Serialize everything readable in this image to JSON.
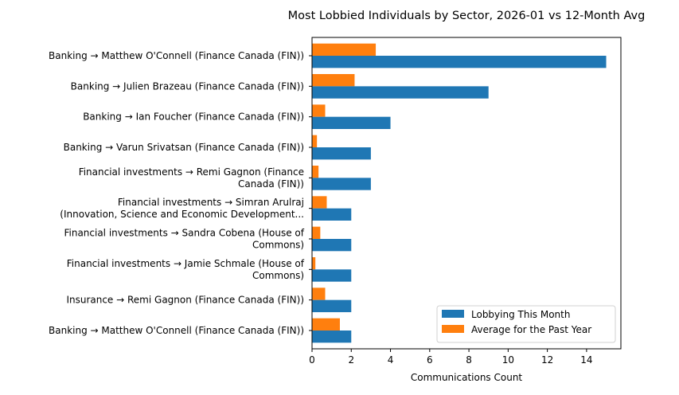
{
  "chart_data": {
    "type": "bar",
    "orientation": "horizontal",
    "title": "Most Lobbied Individuals by Sector, 2026-01 vs 12-Month Avg",
    "xlabel": "Communications Count",
    "ylabel": "",
    "xlim": [
      0,
      15.75
    ],
    "xticks": [
      0,
      2,
      4,
      6,
      8,
      10,
      12,
      14
    ],
    "grid": false,
    "legend_position": "lower-right",
    "categories": [
      "Banking → Matthew O'Connell (Finance Canada (FIN))",
      "Banking → Julien Brazeau (Finance Canada (FIN))",
      "Banking → Ian Foucher (Finance Canada (FIN))",
      "Banking → Varun  Srivatsan (Finance Canada (FIN))",
      "Financial investments → Remi Gagnon (Finance\nCanada (FIN))",
      "Financial investments → Simran Arulraj\n(Innovation, Science and Economic Development...",
      "Financial investments → Sandra Cobena (House of\nCommons)",
      "Financial investments → Jamie Schmale (House of\nCommons)",
      "Insurance → Remi Gagnon (Finance Canada (FIN))",
      "Banking → Matthew O'Connell (Finance Canada (FIN))"
    ],
    "series": [
      {
        "name": "Lobbying This Month",
        "color": "#1f77b4",
        "values": [
          15,
          9,
          4,
          3,
          3,
          2,
          2,
          2,
          2,
          2
        ]
      },
      {
        "name": "Average for the Past Year",
        "color": "#ff7f0e",
        "values": [
          3.25,
          2.17,
          0.67,
          0.25,
          0.33,
          0.75,
          0.42,
          0.17,
          0.67,
          1.42
        ]
      }
    ]
  }
}
